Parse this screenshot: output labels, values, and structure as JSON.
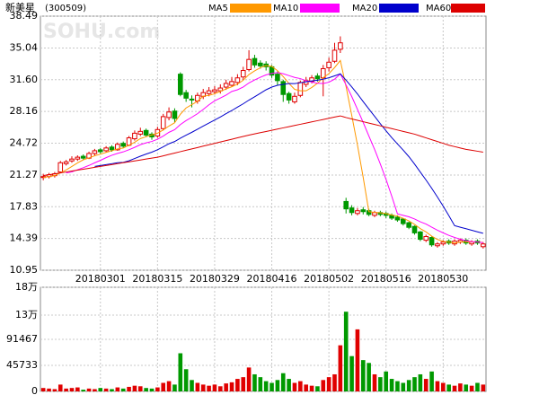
{
  "chart_data": [
    {
      "type": "candlestick",
      "title": "新美星",
      "code": "(300509)",
      "watermark": "SOHU.com",
      "categories": [
        null,
        null,
        null,
        null,
        null,
        null,
        null,
        null,
        null,
        null,
        "20180301",
        null,
        null,
        null,
        null,
        null,
        null,
        null,
        null,
        null,
        "20180315",
        null,
        null,
        null,
        null,
        null,
        null,
        null,
        null,
        null,
        "20180329",
        null,
        null,
        null,
        null,
        null,
        null,
        null,
        null,
        null,
        "20180416",
        null,
        null,
        null,
        null,
        null,
        null,
        null,
        null,
        null,
        "20180502",
        null,
        null,
        null,
        null,
        null,
        null,
        null,
        null,
        null,
        "20180516",
        null,
        null,
        null,
        null,
        null,
        null,
        null,
        null,
        null,
        "20180530",
        null,
        null,
        null,
        null,
        null,
        null,
        null
      ],
      "open": [
        21.0,
        21.1,
        21.2,
        21.6,
        22.5,
        22.8,
        23.0,
        23.3,
        23.1,
        23.6,
        24.0,
        23.9,
        24.3,
        24.0,
        24.7,
        24.5,
        25.2,
        25.7,
        26.1,
        25.7,
        25.5,
        26.3,
        27.5,
        28.2,
        32.2,
        30.2,
        29.5,
        29.3,
        29.8,
        30.1,
        30.3,
        30.4,
        30.8,
        31.0,
        31.3,
        31.9,
        32.7,
        33.9,
        33.4,
        33.3,
        33.0,
        32.2,
        31.4,
        30.1,
        29.2,
        29.9,
        31.1,
        31.4,
        32.0,
        31.8,
        32.9,
        33.6,
        34.9,
        18.4,
        17.7,
        17.1,
        17.5,
        17.4,
        16.9,
        17.2,
        17.1,
        16.9,
        16.7,
        16.5,
        16.1,
        15.7,
        15.1,
        14.2,
        14.5,
        13.6,
        13.8,
        14.1,
        13.8,
        14.0,
        14.2,
        13.8,
        14.1,
        13.5
      ],
      "high": [
        21.4,
        21.5,
        21.6,
        22.8,
        22.9,
        23.3,
        23.4,
        23.5,
        23.8,
        24.1,
        24.2,
        24.4,
        24.5,
        24.8,
        24.9,
        25.5,
        26.1,
        26.4,
        26.3,
        25.9,
        26.5,
        27.9,
        28.6,
        28.5,
        32.4,
        30.5,
        29.9,
        30.2,
        30.6,
        30.8,
        30.9,
        31.1,
        31.6,
        31.9,
        32.2,
        33.0,
        34.8,
        34.3,
        33.7,
        33.6,
        33.2,
        32.5,
        31.6,
        30.3,
        30.2,
        31.5,
        31.9,
        32.1,
        32.3,
        33.2,
        34.0,
        35.6,
        36.3,
        18.8,
        18.0,
        17.7,
        17.8,
        17.6,
        17.4,
        17.4,
        17.3,
        17.1,
        16.9,
        16.6,
        16.2,
        15.8,
        15.2,
        14.8,
        14.6,
        14.0,
        14.2,
        14.3,
        14.3,
        14.4,
        14.4,
        14.2,
        14.3,
        14.0
      ],
      "low": [
        20.7,
        20.9,
        21.0,
        21.5,
        22.3,
        22.6,
        22.8,
        22.9,
        23.0,
        23.4,
        23.6,
        23.7,
        23.8,
        23.9,
        24.2,
        24.4,
        25.0,
        25.5,
        25.4,
        25.1,
        25.3,
        26.1,
        27.2,
        27.0,
        29.8,
        29.2,
        28.6,
        29.0,
        29.5,
        29.8,
        30.0,
        30.1,
        30.5,
        30.8,
        31.0,
        31.6,
        32.5,
        32.9,
        32.8,
        32.6,
        31.8,
        31.0,
        29.2,
        29.0,
        29.0,
        29.7,
        30.8,
        31.2,
        31.4,
        29.8,
        32.5,
        33.4,
        34.5,
        17.1,
        16.9,
        16.9,
        17.0,
        16.8,
        16.7,
        16.8,
        16.6,
        16.4,
        16.2,
        15.8,
        15.4,
        14.8,
        14.1,
        14.0,
        13.5,
        13.4,
        13.6,
        13.7,
        13.6,
        13.8,
        13.7,
        13.6,
        13.7,
        13.3
      ],
      "close": [
        21.1,
        21.3,
        21.4,
        22.6,
        22.7,
        23.0,
        23.2,
        23.1,
        23.6,
        23.9,
        23.8,
        24.2,
        24.0,
        24.6,
        24.4,
        25.3,
        25.8,
        26.0,
        25.6,
        25.4,
        26.2,
        27.6,
        28.1,
        27.4,
        30.0,
        29.6,
        29.4,
        29.9,
        30.2,
        30.4,
        30.5,
        30.7,
        31.2,
        31.4,
        31.8,
        32.6,
        33.8,
        33.2,
        33.1,
        33.0,
        32.1,
        31.5,
        30.0,
        29.4,
        29.8,
        31.3,
        31.5,
        31.8,
        31.7,
        32.8,
        33.5,
        34.8,
        35.6,
        17.6,
        17.2,
        17.4,
        17.3,
        17.0,
        17.2,
        17.0,
        16.9,
        16.6,
        16.4,
        16.0,
        15.6,
        15.0,
        14.3,
        14.6,
        13.7,
        13.8,
        14.0,
        13.9,
        14.1,
        14.2,
        13.9,
        14.0,
        13.9,
        13.8
      ],
      "up_color": "#e00000",
      "down_color": "#009900",
      "series": [
        {
          "name": "MA5",
          "color": "#ff9900",
          "values": [
            21.0,
            21.1,
            21.2,
            21.5,
            21.82,
            22.2,
            22.58,
            22.92,
            23.12,
            23.36,
            23.52,
            23.72,
            23.9,
            24.1,
            24.2,
            24.5,
            24.82,
            25.22,
            25.42,
            25.62,
            25.8,
            26.16,
            26.58,
            26.94,
            27.86,
            28.54,
            28.9,
            29.26,
            29.82,
            29.9,
            30.08,
            30.34,
            30.6,
            30.84,
            31.12,
            31.54,
            32.16,
            32.56,
            32.9,
            33.14,
            33.04,
            32.58,
            31.94,
            31.2,
            30.56,
            30.4,
            30.4,
            30.76,
            31.22,
            31.82,
            32.26,
            32.92,
            33.68,
            30.86,
            27.74,
            24.52,
            21.02,
            17.3,
            17.22,
            17.18,
            17.08,
            16.94,
            16.82,
            16.58,
            16.3,
            15.92,
            15.46,
            15.1,
            14.64,
            14.28,
            14.08,
            14.0,
            13.9,
            14.0,
            14.02,
            14.02,
            14.02,
            13.96
          ]
        },
        {
          "name": "MA10",
          "color": "#ff00ff",
          "values": [
            null,
            null,
            null,
            null,
            21.5,
            21.6,
            21.84,
            22.06,
            22.31,
            22.59,
            22.86,
            23.15,
            23.41,
            23.61,
            23.78,
            24.01,
            24.27,
            24.56,
            24.76,
            24.91,
            25.15,
            25.49,
            25.9,
            26.18,
            26.74,
            27.17,
            27.53,
            27.92,
            28.38,
            28.88,
            29.31,
            29.62,
            29.93,
            30.33,
            30.51,
            30.81,
            31.25,
            31.58,
            31.87,
            32.13,
            32.29,
            32.37,
            32.25,
            32.05,
            31.85,
            31.72,
            31.49,
            31.35,
            31.21,
            31.19,
            31.33,
            31.66,
            32.22,
            31.04,
            29.78,
            28.39,
            26.97,
            25.49,
            24.04,
            22.46,
            20.8,
            18.98,
            17.06,
            16.9,
            16.74,
            16.5,
            16.2,
            15.96,
            15.61,
            15.29,
            15.0,
            14.73,
            14.5,
            14.32,
            14.15,
            14.05,
            14.01,
            13.93
          ]
        },
        {
          "name": "MA20",
          "color": "#0000cc",
          "values": [
            null,
            null,
            null,
            null,
            null,
            null,
            null,
            null,
            null,
            22.2,
            22.3,
            22.4,
            22.5,
            22.6,
            22.64,
            22.81,
            23.06,
            23.31,
            23.54,
            23.75,
            24.01,
            24.32,
            24.66,
            24.9,
            25.26,
            25.59,
            25.9,
            26.24,
            26.57,
            26.9,
            27.23,
            27.56,
            27.92,
            28.26,
            28.63,
            28.99,
            29.39,
            29.75,
            30.13,
            30.51,
            30.8,
            31.0,
            31.09,
            31.19,
            31.18,
            31.27,
            31.37,
            31.47,
            31.54,
            31.66,
            31.81,
            32.02,
            32.24,
            31.55,
            30.82,
            30.06,
            29.23,
            28.42,
            27.63,
            26.83,
            26.07,
            25.32,
            24.64,
            23.97,
            23.26,
            22.45,
            21.59,
            20.73,
            19.83,
            18.88,
            17.9,
            16.86,
            15.78,
            15.61,
            15.45,
            15.28,
            15.11,
            14.95
          ]
        },
        {
          "name": "MA60",
          "color": "#dd0000",
          "values": [
            21.2,
            21.3,
            21.4,
            21.5,
            21.6,
            21.7,
            21.8,
            21.9,
            22.0,
            22.1,
            22.2,
            22.3,
            22.4,
            22.5,
            22.6,
            22.7,
            22.8,
            22.9,
            23.0,
            23.1,
            23.2,
            23.35,
            23.5,
            23.65,
            23.8,
            23.95,
            24.1,
            24.25,
            24.4,
            24.55,
            24.7,
            24.85,
            25.0,
            25.15,
            25.3,
            25.45,
            25.6,
            25.73,
            25.86,
            25.99,
            26.12,
            26.25,
            26.38,
            26.51,
            26.64,
            26.77,
            26.9,
            27.03,
            27.16,
            27.29,
            27.42,
            27.55,
            27.68,
            27.5,
            27.35,
            27.2,
            27.05,
            26.9,
            26.75,
            26.6,
            26.45,
            26.3,
            26.15,
            26.0,
            25.85,
            25.7,
            25.5,
            25.3,
            25.1,
            24.9,
            24.7,
            24.5,
            24.35,
            24.2,
            24.05,
            23.95,
            23.85,
            23.75
          ]
        }
      ],
      "ylim": [
        10.95,
        38.49
      ],
      "yticks": [
        10.95,
        14.39,
        17.83,
        21.27,
        24.72,
        28.16,
        {
          "value": 31.6,
          "label": "31.60"
        },
        35.04,
        38.49
      ],
      "grid": true
    },
    {
      "type": "bar",
      "values": [
        6000,
        5000,
        4000,
        12000,
        5000,
        6000,
        7000,
        3000,
        5000,
        4000,
        6000,
        5000,
        4000,
        7000,
        5000,
        8000,
        10000,
        9000,
        6000,
        5000,
        7000,
        15000,
        18000,
        12000,
        67000,
        39000,
        20000,
        15000,
        12000,
        10000,
        12000,
        9000,
        14000,
        16000,
        22000,
        25000,
        42000,
        30000,
        25000,
        18000,
        15000,
        20000,
        32000,
        22000,
        15000,
        18000,
        12000,
        10000,
        9000,
        20000,
        25000,
        30000,
        81000,
        140000,
        62000,
        109000,
        55000,
        50000,
        30000,
        25000,
        35000,
        22000,
        18000,
        15000,
        20000,
        25000,
        30000,
        22000,
        35000,
        18000,
        15000,
        12000,
        10000,
        14000,
        12000,
        10000,
        15000,
        12000
      ],
      "ylim": [
        0,
        182933
      ],
      "yticks": [
        0,
        45733,
        91467,
        {
          "value": 134000,
          "label": "13万"
        },
        {
          "value": 182933,
          "label": "18万"
        }
      ],
      "grid": true
    }
  ]
}
